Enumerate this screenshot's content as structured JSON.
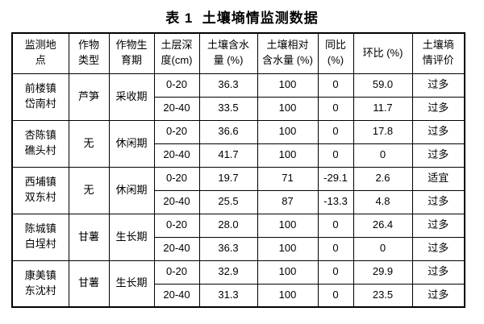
{
  "title": "表 1  土壤墒情监测数据",
  "table": {
    "column_ids": [
      "location",
      "crop",
      "stage",
      "depth",
      "moisture",
      "relative-moisture",
      "yoy",
      "mom",
      "evaluation"
    ],
    "headers": [
      "监测地\n点",
      "作物\n类型",
      "作物生\n育期",
      "土层深\n度(cm)",
      "土壤含水\n量 (%)",
      "土壤相对\n含水量 (%)",
      "同比\n(%)",
      "环比 (%)",
      "土壤墒\n情评价"
    ],
    "groups": [
      {
        "location": "前楼镇\n岱南村",
        "crop": "芦笋",
        "stage": "采收期",
        "rows": [
          [
            "0-20",
            "36.3",
            "100",
            "0",
            "59.0",
            "过多"
          ],
          [
            "20-40",
            "33.5",
            "100",
            "0",
            "11.7",
            "过多"
          ]
        ]
      },
      {
        "location": "杏陈镇\n礁头村",
        "crop": "无",
        "stage": "休闲期",
        "rows": [
          [
            "0-20",
            "36.6",
            "100",
            "0",
            "17.8",
            "过多"
          ],
          [
            "20-40",
            "41.7",
            "100",
            "0",
            "0",
            "过多"
          ]
        ]
      },
      {
        "location": "西埔镇\n双东村",
        "crop": "无",
        "stage": "休闲期",
        "rows": [
          [
            "0-20",
            "19.7",
            "71",
            "-29.1",
            "2.6",
            "适宜"
          ],
          [
            "20-40",
            "25.5",
            "87",
            "-13.3",
            "4.8",
            "过多"
          ]
        ]
      },
      {
        "location": "陈城镇\n白埕村",
        "crop": "甘薯",
        "stage": "生长期",
        "rows": [
          [
            "0-20",
            "28.0",
            "100",
            "0",
            "26.4",
            "过多"
          ],
          [
            "20-40",
            "36.3",
            "100",
            "0",
            "0",
            "过多"
          ]
        ]
      },
      {
        "location": "康美镇\n东沈村",
        "crop": "甘薯",
        "stage": "生长期",
        "rows": [
          [
            "0-20",
            "32.9",
            "100",
            "0",
            "29.9",
            "过多"
          ],
          [
            "20-40",
            "31.3",
            "100",
            "0",
            "23.5",
            "过多"
          ]
        ]
      }
    ]
  }
}
